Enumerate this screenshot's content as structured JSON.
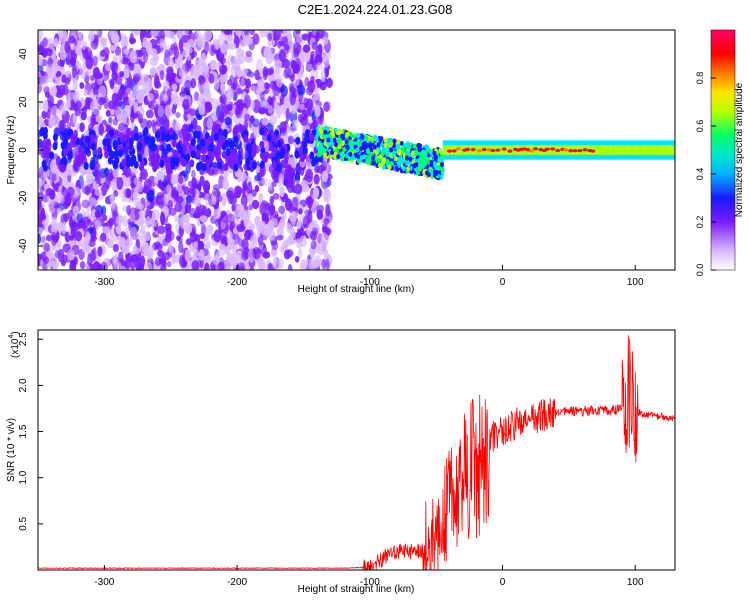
{
  "title": "C2E1.2024.224.01.23.G08",
  "chart_data": [
    {
      "type": "heatmap",
      "xlabel": "Height of straight line (km)",
      "ylabel": "Frequency (Hz)",
      "xlim": [
        -350,
        130
      ],
      "ylim": [
        -50,
        50
      ],
      "xticks": [
        -300,
        -200,
        -100,
        0,
        100
      ],
      "yticks": [
        -40,
        -20,
        0,
        20,
        40
      ],
      "colorbar": {
        "label": "Normalized spectral amplitude",
        "range": [
          0,
          1
        ],
        "ticks": [
          "0.0",
          "0.2",
          "0.4",
          "0.6",
          "0.8"
        ],
        "colors": [
          "#ffffff",
          "#d9b8ff",
          "#7a1cff",
          "#1a1aff",
          "#00e6ff",
          "#00ff66",
          "#b8ff00",
          "#ffe600",
          "#ff7a00",
          "#ff0000",
          "#ff0066"
        ]
      },
      "description_regions": {
        "noise_region_x": [
          -350,
          -130
        ],
        "signal_line_freq_hz": 0
      }
    },
    {
      "type": "line",
      "xlabel": "Height of straight line (km)",
      "ylabel": "SNR (10 * v/v)",
      "y_multiplier": "(x10",
      "y_multiplier_exp": "4",
      "xlim": [
        -350,
        130
      ],
      "ylim": [
        0,
        2.6
      ],
      "xticks": [
        -300,
        -200,
        -100,
        0,
        100
      ],
      "yticks": [
        "0.5",
        "1.0",
        "1.5",
        "2.0",
        "2.5"
      ],
      "line_color": "#ff0000",
      "series": [
        {
          "x": [
            -350,
            -300,
            -250,
            -200,
            -150,
            -120,
            -100,
            -90,
            -80,
            -70,
            -60,
            -50,
            -45,
            -40,
            -35,
            -30,
            -25,
            -20,
            -10,
            0,
            10,
            20,
            30,
            40,
            50,
            60,
            70,
            80,
            90,
            95,
            98,
            100,
            110,
            120,
            130
          ],
          "values": [
            0.02,
            0.02,
            0.02,
            0.02,
            0.02,
            0.02,
            0.03,
            0.12,
            0.2,
            0.2,
            0.22,
            0.3,
            0.5,
            0.8,
            0.95,
            1.15,
            1.3,
            1.35,
            1.42,
            1.5,
            1.58,
            1.62,
            1.67,
            1.7,
            1.72,
            1.72,
            1.72,
            1.73,
            1.74,
            1.9,
            2.2,
            1.72,
            1.68,
            1.66,
            1.65
          ]
        }
      ]
    }
  ]
}
